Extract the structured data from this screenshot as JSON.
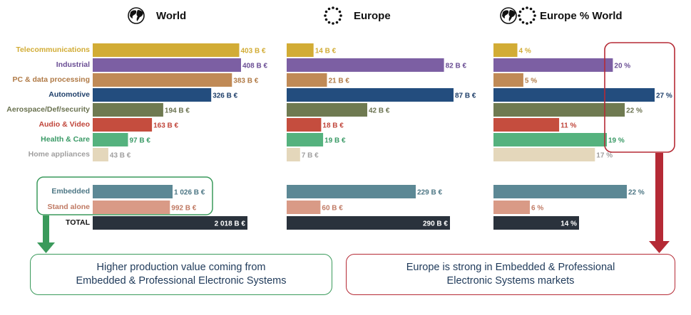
{
  "panels": [
    {
      "title": "World",
      "icons": [
        "globe-icon"
      ]
    },
    {
      "title": "Europe",
      "icons": [
        "eu-stars-icon"
      ]
    },
    {
      "title": "Europe % World",
      "icons": [
        "globe-icon",
        "eu-stars-icon"
      ]
    }
  ],
  "colors": {
    "telecom": "#d2ac35",
    "industrial": "#7c5fa3",
    "pc": "#c08a56",
    "automotive": "#234d7e",
    "aerospace": "#6f7a51",
    "audio": "#c54d3e",
    "health": "#55b27e",
    "home": "#e4d7bb",
    "embedded": "#5c8895",
    "standalone": "#d99a86",
    "total": "#2a323c",
    "green_accent": "#3a9a5b",
    "red_accent": "#b52a35"
  },
  "chart_data": [
    {
      "type": "bar",
      "title": "World",
      "categories": [
        "Telecommunications",
        "Industrial",
        "PC & data processing",
        "Automotive",
        "Aerospace/Def/security",
        "Audio & Video",
        "Health & Care",
        "Home appliances"
      ],
      "values": [
        403,
        408,
        383,
        326,
        194,
        163,
        97,
        43
      ],
      "value_labels": [
        "403 B €",
        "408 B €",
        "383 B €",
        "326 B €",
        "194 B €",
        "163 B €",
        "97 B €",
        "43 B €"
      ],
      "summary_categories": [
        "Embedded",
        "Stand alone",
        "TOTAL"
      ],
      "summary_values": [
        1026,
        992,
        2018
      ],
      "summary_labels": [
        "1 026 B €",
        "992 B €",
        "2 018 B €"
      ],
      "unit": "B €"
    },
    {
      "type": "bar",
      "title": "Europe",
      "categories": [
        "Telecommunications",
        "Industrial",
        "PC & data processing",
        "Automotive",
        "Aerospace/Def/security",
        "Audio & Video",
        "Health & Care",
        "Home appliances"
      ],
      "values": [
        14,
        82,
        21,
        87,
        42,
        18,
        19,
        7
      ],
      "value_labels": [
        "14 B €",
        "82 B €",
        "21 B €",
        "87 B €",
        "42 B €",
        "18 B €",
        "19 B €",
        "7 B €"
      ],
      "summary_categories": [
        "Embedded",
        "Stand alone",
        "TOTAL"
      ],
      "summary_values": [
        229,
        60,
        290
      ],
      "summary_labels": [
        "229 B €",
        "60 B €",
        "290 B €"
      ],
      "unit": "B €"
    },
    {
      "type": "bar",
      "title": "Europe % World",
      "categories": [
        "Telecommunications",
        "Industrial",
        "PC & data processing",
        "Automotive",
        "Aerospace/Def/security",
        "Audio & Video",
        "Health & Care",
        "Home appliances"
      ],
      "values": [
        4,
        20,
        5,
        27,
        22,
        11,
        19,
        17
      ],
      "value_labels": [
        "4 %",
        "20 %",
        "5 %",
        "27 %",
        "22 %",
        "11 %",
        "19 %",
        "17 %"
      ],
      "summary_categories": [
        "Embedded",
        "Stand alone",
        "TOTAL"
      ],
      "summary_values": [
        22,
        6,
        14
      ],
      "summary_labels": [
        "22 %",
        "6 %",
        "14 %"
      ],
      "unit": "%"
    }
  ],
  "conclusions": {
    "green": [
      "Higher production value coming from",
      "Embedded & Professional Electronic Systems"
    ],
    "red": [
      "Europe is strong in Embedded & Professional",
      "Electronic Systems markets"
    ]
  }
}
